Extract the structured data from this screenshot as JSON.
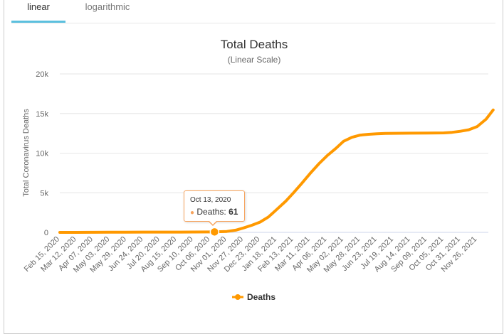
{
  "tabs": [
    {
      "label": "linear",
      "active": true
    },
    {
      "label": "logarithmic",
      "active": false
    }
  ],
  "colors": {
    "series": "#ff9900",
    "accent": "#5bc0de",
    "tooltip_border": "#f7a35c"
  },
  "tooltip": {
    "date": "Oct 13, 2020",
    "series": "Deaths",
    "value": "61"
  },
  "chart_data": {
    "type": "line",
    "title": "Total Deaths",
    "subtitle": "(Linear Scale)",
    "ylabel": "Total Coronavirus Deaths",
    "xlabel": "",
    "ylim": [
      0,
      20000
    ],
    "yticks": [
      "0",
      "5k",
      "10k",
      "15k",
      "20k"
    ],
    "ytick_values": [
      0,
      5000,
      10000,
      15000,
      20000
    ],
    "xtick_labels": [
      "Feb 15, 2020",
      "Mar 12, 2020",
      "Apr 07, 2020",
      "May 03, 2020",
      "May 29, 2020",
      "Jun 24, 2020",
      "Jul 20, 2020",
      "Aug 15, 2020",
      "Sep 10, 2020",
      "Oct 06, 2020",
      "Nov 01, 2020",
      "Nov 27, 2020",
      "Dec 23, 2020",
      "Jan 18, 2021",
      "Feb 13, 2021",
      "Mar 11, 2021",
      "Apr 06, 2021",
      "May 02, 2021",
      "May 28, 2021",
      "Jun 23, 2021",
      "Jul 19, 2021",
      "Aug 14, 2021",
      "Sep 09, 2021",
      "Oct 05, 2021",
      "Oct 31, 2021",
      "Nov 26, 2021"
    ],
    "grid": true,
    "legend_position": "bottom-center",
    "series": [
      {
        "name": "Deaths",
        "x": [
          "2020-02-15",
          "2020-03-12",
          "2020-04-07",
          "2020-05-03",
          "2020-05-29",
          "2020-06-24",
          "2020-07-20",
          "2020-08-15",
          "2020-09-10",
          "2020-10-06",
          "2020-10-13",
          "2020-11-01",
          "2020-11-15",
          "2020-11-27",
          "2020-12-10",
          "2020-12-23",
          "2021-01-05",
          "2021-01-18",
          "2021-02-01",
          "2021-02-13",
          "2021-02-26",
          "2021-03-11",
          "2021-03-25",
          "2021-04-06",
          "2021-04-20",
          "2021-05-02",
          "2021-05-15",
          "2021-05-28",
          "2021-06-10",
          "2021-06-23",
          "2021-07-06",
          "2021-07-19",
          "2021-08-14",
          "2021-09-09",
          "2021-10-05",
          "2021-10-18",
          "2021-10-31",
          "2021-11-13",
          "2021-11-26",
          "2021-12-10",
          "2021-12-21"
        ],
        "values": [
          0,
          2,
          10,
          25,
          30,
          32,
          35,
          40,
          45,
          55,
          61,
          120,
          280,
          560,
          900,
          1300,
          1950,
          2900,
          3950,
          5000,
          6200,
          7450,
          8700,
          9650,
          10600,
          11500,
          12000,
          12280,
          12380,
          12450,
          12480,
          12500,
          12520,
          12540,
          12560,
          12630,
          12760,
          12950,
          13350,
          14300,
          15450
        ]
      }
    ],
    "highlight": {
      "x": "2020-10-13",
      "value": 61
    }
  }
}
